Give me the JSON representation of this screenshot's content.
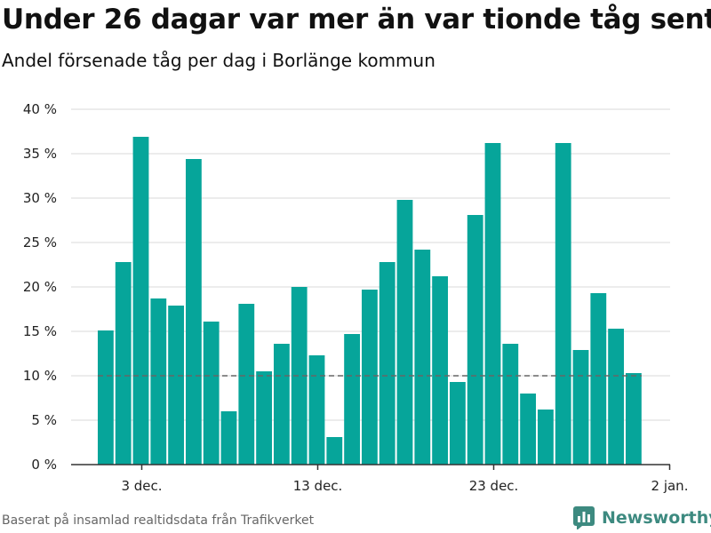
{
  "title": "Under 26 dagar var mer än var tionde tåg sent",
  "subtitle": "Andel försenade tåg per dag i Borlänge kommun",
  "footer": {
    "source": "Baserat på insamlad realtidsdata från Trafikverket",
    "brand": "Newsworthy"
  },
  "colors": {
    "bar": "#06a59a",
    "grid": "#d9d9d9",
    "reference_line": "#666666",
    "brand": "#3d8a80"
  },
  "icons": {
    "brand_logo": "bar-chart-logo-icon"
  },
  "chart_data": {
    "type": "bar",
    "title": "Under 26 dagar var mer än var tionde tåg sent",
    "subtitle": "Andel försenade tåg per dag i Borlänge kommun",
    "xlabel": "",
    "ylabel": "",
    "x": [
      "2024-12-01",
      "2024-12-02",
      "2024-12-03",
      "2024-12-04",
      "2024-12-05",
      "2024-12-06",
      "2024-12-07",
      "2024-12-08",
      "2024-12-09",
      "2024-12-10",
      "2024-12-11",
      "2024-12-12",
      "2024-12-13",
      "2024-12-14",
      "2024-12-15",
      "2024-12-16",
      "2024-12-17",
      "2024-12-18",
      "2024-12-19",
      "2024-12-20",
      "2024-12-21",
      "2024-12-22",
      "2024-12-23",
      "2024-12-24",
      "2024-12-25",
      "2024-12-26",
      "2024-12-27",
      "2024-12-28",
      "2024-12-29",
      "2024-12-30",
      "2024-12-31"
    ],
    "values": [
      15.1,
      22.8,
      36.9,
      18.7,
      17.9,
      34.4,
      16.1,
      6.0,
      18.1,
      10.5,
      13.6,
      20.0,
      12.3,
      3.1,
      14.7,
      19.7,
      22.8,
      29.8,
      24.2,
      21.2,
      9.3,
      28.1,
      36.2,
      13.6,
      8.0,
      6.2,
      36.2,
      12.9,
      19.3,
      15.3,
      10.3
    ],
    "ylim": [
      0,
      40
    ],
    "y_ticks": [
      0,
      5,
      10,
      15,
      20,
      25,
      30,
      35,
      40
    ],
    "y_tick_labels": [
      "0 %",
      "5 %",
      "10 %",
      "15 %",
      "20 %",
      "25 %",
      "30 %",
      "35 %",
      "40 %"
    ],
    "x_ticks": [
      "2024-12-03",
      "2024-12-13",
      "2024-12-23",
      "2025-01-02"
    ],
    "x_tick_labels": [
      "3 dec.",
      "13 dec.",
      "23 dec.",
      "2 jan."
    ],
    "reference_line": 10,
    "grid": true,
    "legend": "none"
  }
}
